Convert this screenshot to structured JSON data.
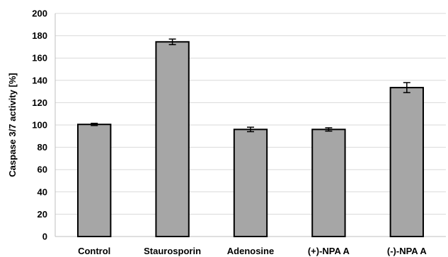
{
  "chart_data": {
    "type": "bar",
    "title": "",
    "xlabel": "",
    "ylabel": "Caspase 3/7 activity [%]",
    "ylim": [
      0,
      200
    ],
    "yticks": [
      0,
      20,
      40,
      60,
      80,
      100,
      120,
      140,
      160,
      180,
      200
    ],
    "grid": true,
    "categories": [
      "Control",
      "Staurosporin",
      "Adenosine",
      "(+)-NPA A",
      "(-)-NPA A"
    ],
    "values": [
      100.5,
      174.5,
      96,
      96,
      133.5
    ],
    "errors": [
      1,
      2.5,
      2,
      1.5,
      4.5
    ],
    "bar_color": "#a6a6a6",
    "bar_edge_color": "#000000"
  }
}
